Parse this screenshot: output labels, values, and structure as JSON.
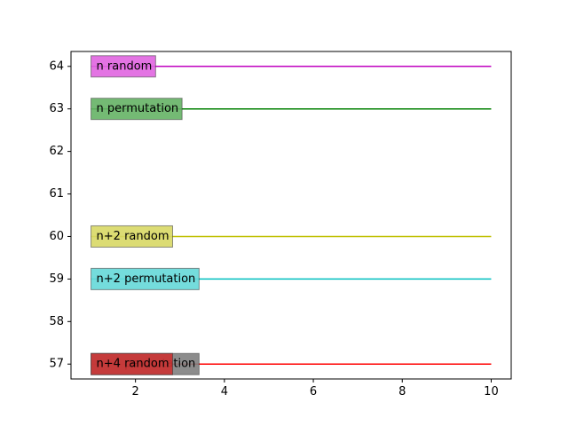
{
  "chart_data": {
    "type": "line",
    "title": "",
    "xlabel": "",
    "ylabel": "",
    "xlim": [
      0.55,
      10.45
    ],
    "ylim": [
      56.65,
      64.35
    ],
    "xticks": [
      2,
      4,
      6,
      8,
      10
    ],
    "yticks": [
      57,
      58,
      59,
      60,
      61,
      62,
      63,
      64
    ],
    "grid": false,
    "x": [
      1,
      10
    ],
    "series": [
      {
        "name": "n random",
        "values": [
          64,
          64
        ],
        "color": "#bf00bf",
        "box_color": "#e066e0"
      },
      {
        "name": "n permutation",
        "values": [
          63,
          63
        ],
        "color": "#008000",
        "box_color": "#66b366"
      },
      {
        "name": "n+2 random",
        "values": [
          60,
          60
        ],
        "color": "#bfbf00",
        "box_color": "#d9d966"
      },
      {
        "name": "n+2 permutation",
        "values": [
          59,
          59
        ],
        "color": "#00bfbf",
        "box_color": "#66d9d9"
      },
      {
        "name": "n+4 permutation",
        "values": [
          57,
          57
        ],
        "color": "#808080",
        "box_color": "#808080"
      },
      {
        "name": "n+4 random",
        "values": [
          57,
          57
        ],
        "color": "#ff0000",
        "box_color": "#cc3333"
      }
    ]
  }
}
